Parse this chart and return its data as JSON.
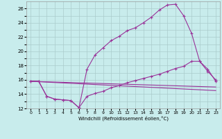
{
  "xlabel": "Windchill (Refroidissement éolien,°C)",
  "bg_color": "#c8ecec",
  "line_color": "#993399",
  "grid_color": "#aacccc",
  "xlim": [
    -0.5,
    23.5
  ],
  "ylim": [
    12,
    27
  ],
  "xticks": [
    0,
    1,
    2,
    3,
    4,
    5,
    6,
    7,
    8,
    9,
    10,
    11,
    12,
    13,
    14,
    15,
    16,
    17,
    18,
    19,
    20,
    21,
    22,
    23
  ],
  "yticks": [
    12,
    13,
    14,
    15,
    16,
    17,
    18,
    19,
    20,
    21,
    22,
    23,
    24,
    25,
    26
  ],
  "ytick_labels": [
    "12",
    "",
    "14",
    "",
    "16",
    "",
    "18",
    "",
    "20",
    "",
    "22",
    "",
    "24",
    "",
    "26"
  ],
  "line1_x": [
    0,
    1,
    2,
    3,
    4,
    5,
    6,
    7,
    8,
    9,
    10,
    11,
    12,
    13,
    14,
    15,
    16,
    17,
    18,
    19,
    20,
    21,
    22,
    23
  ],
  "line1_y": [
    15.8,
    15.8,
    13.7,
    13.3,
    13.2,
    13.1,
    12.1,
    17.5,
    19.5,
    20.5,
    21.5,
    22.1,
    22.9,
    23.3,
    24.0,
    24.8,
    25.8,
    26.5,
    26.6,
    25.0,
    22.5,
    18.6,
    17.2,
    16.0
  ],
  "line2_x": [
    0,
    1,
    2,
    3,
    4,
    5,
    6,
    7,
    8,
    9,
    10,
    11,
    12,
    13,
    14,
    15,
    16,
    17,
    18,
    19,
    20,
    21,
    22,
    23
  ],
  "line2_y": [
    15.8,
    15.8,
    13.7,
    13.3,
    13.2,
    13.1,
    12.1,
    13.7,
    14.1,
    14.4,
    14.9,
    15.2,
    15.6,
    15.9,
    16.2,
    16.5,
    16.8,
    17.2,
    17.6,
    17.9,
    18.6,
    18.6,
    17.5,
    15.8
  ],
  "line3_x": [
    0,
    23
  ],
  "line3_y": [
    15.8,
    15.0
  ],
  "line4_x": [
    0,
    23
  ],
  "line4_y": [
    15.8,
    14.5
  ]
}
